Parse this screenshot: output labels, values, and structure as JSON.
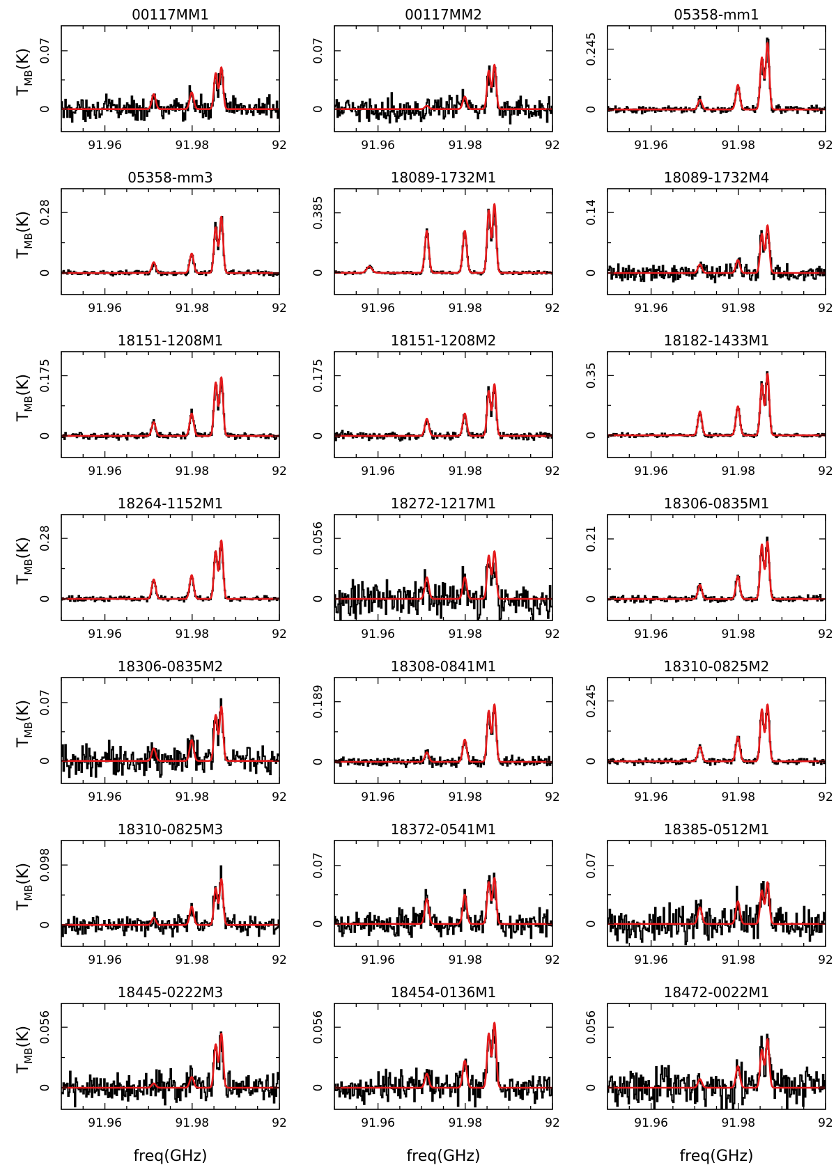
{
  "figure": {
    "xlabel": "freq(GHz)",
    "ylabel_main": "T",
    "ylabel_sub": "MB",
    "ylabel_unit": "(K)"
  },
  "colors": {
    "observed": "#000000",
    "fit": "#e41a1c"
  },
  "chart_data": [
    {
      "type": "line",
      "title": "00117MM1",
      "xlim": [
        91.95,
        92
      ],
      "xticks": [
        "91.96",
        "91.98",
        "92"
      ],
      "ylim": [
        -0.027,
        0.1
      ],
      "ytick_labels": [
        "0",
        "0.07"
      ],
      "ytick_values": [
        0,
        0.07
      ],
      "noise": 0.0085,
      "peaks": [
        0.018,
        0.02,
        0.043,
        0.05
      ],
      "satellite": 0,
      "series": [
        {
          "name": "observed"
        },
        {
          "name": "fit"
        }
      ]
    },
    {
      "type": "line",
      "title": "00117MM2",
      "xlim": [
        91.95,
        92
      ],
      "xticks": [
        "91.96",
        "91.98",
        "92"
      ],
      "ylim": [
        -0.027,
        0.1
      ],
      "ytick_labels": [
        "0",
        "0.07"
      ],
      "ytick_values": [
        0,
        0.07
      ],
      "noise": 0.009,
      "peaks": [
        0.004,
        0.015,
        0.046,
        0.053
      ],
      "satellite": 0,
      "series": [
        {
          "name": "observed"
        },
        {
          "name": "fit"
        }
      ]
    },
    {
      "type": "line",
      "title": "05358-mm1",
      "xlim": [
        91.95,
        92
      ],
      "xticks": [
        "91.96",
        "91.98",
        "92"
      ],
      "ylim": [
        -0.09,
        0.34
      ],
      "ytick_labels": [
        "0",
        "0.245"
      ],
      "ytick_values": [
        0,
        0.245
      ],
      "noise": 0.009,
      "peaks": [
        0.04,
        0.1,
        0.21,
        0.27
      ],
      "satellite": 0,
      "series": [
        {
          "name": "observed"
        },
        {
          "name": "fit"
        }
      ]
    },
    {
      "type": "line",
      "title": "05358-mm3",
      "xlim": [
        91.95,
        92
      ],
      "xticks": [
        "91.96",
        "91.98",
        "92"
      ],
      "ylim": [
        -0.1,
        0.39
      ],
      "ytick_labels": [
        "0",
        "0.28"
      ],
      "ytick_values": [
        0,
        0.28
      ],
      "noise": 0.008,
      "peaks": [
        0.05,
        0.09,
        0.21,
        0.26
      ],
      "satellite": 0,
      "series": [
        {
          "name": "observed"
        },
        {
          "name": "fit"
        }
      ]
    },
    {
      "type": "line",
      "title": "18089-1732M1",
      "xlim": [
        91.95,
        92
      ],
      "xticks": [
        "91.96",
        "91.98",
        "92"
      ],
      "ylim": [
        -0.14,
        0.54
      ],
      "ytick_labels": [
        "0",
        "0.385"
      ],
      "ytick_values": [
        0,
        0.385
      ],
      "noise": 0.006,
      "peaks": [
        0.27,
        0.27,
        0.4,
        0.44
      ],
      "satellite": 0.04,
      "series": [
        {
          "name": "observed"
        },
        {
          "name": "fit"
        }
      ]
    },
    {
      "type": "line",
      "title": "18089-1732M4",
      "xlim": [
        91.95,
        92
      ],
      "xticks": [
        "91.96",
        "91.98",
        "92"
      ],
      "ylim": [
        -0.05,
        0.195
      ],
      "ytick_labels": [
        "0",
        "0.14"
      ],
      "ytick_values": [
        0,
        0.14
      ],
      "noise": 0.012,
      "peaks": [
        0.02,
        0.03,
        0.09,
        0.11
      ],
      "satellite": 0,
      "series": [
        {
          "name": "observed"
        },
        {
          "name": "fit"
        }
      ]
    },
    {
      "type": "line",
      "title": "18151-1208M1",
      "xlim": [
        91.95,
        92
      ],
      "xticks": [
        "91.96",
        "91.98",
        "92"
      ],
      "ylim": [
        -0.063,
        0.245
      ],
      "ytick_labels": [
        "0",
        "0.175"
      ],
      "ytick_values": [
        0,
        0.175
      ],
      "noise": 0.006,
      "peaks": [
        0.04,
        0.065,
        0.155,
        0.17
      ],
      "satellite": 0,
      "series": [
        {
          "name": "observed"
        },
        {
          "name": "fit"
        }
      ]
    },
    {
      "type": "line",
      "title": "18151-1208M2",
      "xlim": [
        91.95,
        92
      ],
      "xticks": [
        "91.96",
        "91.98",
        "92"
      ],
      "ylim": [
        -0.063,
        0.245
      ],
      "ytick_labels": [
        "0",
        "0.175"
      ],
      "ytick_values": [
        0,
        0.175
      ],
      "noise": 0.007,
      "peaks": [
        0.05,
        0.065,
        0.13,
        0.15
      ],
      "satellite": 0,
      "series": [
        {
          "name": "observed"
        },
        {
          "name": "fit"
        }
      ]
    },
    {
      "type": "line",
      "title": "18182-1433M1",
      "xlim": [
        91.95,
        92
      ],
      "xticks": [
        "91.96",
        "91.98",
        "92"
      ],
      "ylim": [
        -0.13,
        0.49
      ],
      "ytick_labels": [
        "0",
        "0.35"
      ],
      "ytick_values": [
        0,
        0.35
      ],
      "noise": 0.007,
      "peaks": [
        0.14,
        0.17,
        0.3,
        0.36
      ],
      "satellite": 0,
      "series": [
        {
          "name": "observed"
        },
        {
          "name": "fit"
        }
      ]
    },
    {
      "type": "line",
      "title": "18264-1152M1",
      "xlim": [
        91.95,
        92
      ],
      "xticks": [
        "91.96",
        "91.98",
        "92"
      ],
      "ylim": [
        -0.1,
        0.39
      ],
      "ytick_labels": [
        "0",
        "0.28"
      ],
      "ytick_values": [
        0,
        0.28
      ],
      "noise": 0.008,
      "peaks": [
        0.09,
        0.11,
        0.22,
        0.27
      ],
      "satellite": 0,
      "series": [
        {
          "name": "observed"
        },
        {
          "name": "fit"
        }
      ]
    },
    {
      "type": "line",
      "title": "18272-1217M1",
      "xlim": [
        91.95,
        92
      ],
      "xticks": [
        "91.96",
        "91.98",
        "92"
      ],
      "ylim": [
        -0.02,
        0.078
      ],
      "ytick_labels": [
        "0",
        "0.056"
      ],
      "ytick_values": [
        0,
        0.056
      ],
      "noise": 0.011,
      "peaks": [
        0.02,
        0.02,
        0.04,
        0.044
      ],
      "satellite": 0,
      "series": [
        {
          "name": "observed"
        },
        {
          "name": "fit"
        }
      ]
    },
    {
      "type": "line",
      "title": "18306-0835M1",
      "xlim": [
        91.95,
        92
      ],
      "xticks": [
        "91.96",
        "91.98",
        "92"
      ],
      "ylim": [
        -0.075,
        0.295
      ],
      "ytick_labels": [
        "0",
        "0.21"
      ],
      "ytick_values": [
        0,
        0.21
      ],
      "noise": 0.007,
      "peaks": [
        0.05,
        0.08,
        0.19,
        0.2
      ],
      "satellite": 0,
      "series": [
        {
          "name": "observed"
        },
        {
          "name": "fit"
        }
      ]
    },
    {
      "type": "line",
      "title": "18306-0835M2",
      "xlim": [
        91.95,
        92
      ],
      "xticks": [
        "91.96",
        "91.98",
        "92"
      ],
      "ylim": [
        -0.027,
        0.1
      ],
      "ytick_labels": [
        "0",
        "0.07"
      ],
      "ytick_values": [
        0,
        0.07
      ],
      "noise": 0.011,
      "peaks": [
        0.015,
        0.025,
        0.055,
        0.065
      ],
      "satellite": 0,
      "series": [
        {
          "name": "observed"
        },
        {
          "name": "fit"
        }
      ]
    },
    {
      "type": "line",
      "title": "18308-0841M1",
      "xlim": [
        91.95,
        92
      ],
      "xticks": [
        "91.96",
        "91.98",
        "92"
      ],
      "ylim": [
        -0.068,
        0.265
      ],
      "ytick_labels": [
        "0",
        "0.189"
      ],
      "ytick_values": [
        0,
        0.189
      ],
      "noise": 0.009,
      "peaks": [
        0.03,
        0.07,
        0.16,
        0.18
      ],
      "satellite": 0,
      "series": [
        {
          "name": "observed"
        },
        {
          "name": "fit"
        }
      ]
    },
    {
      "type": "line",
      "title": "18310-0825M2",
      "xlim": [
        91.95,
        92
      ],
      "xticks": [
        "91.96",
        "91.98",
        "92"
      ],
      "ylim": [
        -0.09,
        0.34
      ],
      "ytick_labels": [
        "0",
        "0.245"
      ],
      "ytick_values": [
        0,
        0.245
      ],
      "noise": 0.008,
      "peaks": [
        0.06,
        0.1,
        0.21,
        0.23
      ],
      "satellite": 0,
      "series": [
        {
          "name": "observed"
        },
        {
          "name": "fit"
        }
      ]
    },
    {
      "type": "line",
      "title": "18310-0825M3",
      "xlim": [
        91.95,
        92
      ],
      "xticks": [
        "91.96",
        "91.98",
        "92"
      ],
      "ylim": [
        -0.035,
        0.138
      ],
      "ytick_labels": [
        "0",
        "0.098"
      ],
      "ytick_values": [
        0,
        0.098
      ],
      "noise": 0.01,
      "peaks": [
        0.012,
        0.03,
        0.06,
        0.075
      ],
      "satellite": 0,
      "series": [
        {
          "name": "observed"
        },
        {
          "name": "fit"
        }
      ]
    },
    {
      "type": "line",
      "title": "18372-0541M1",
      "xlim": [
        91.95,
        92
      ],
      "xticks": [
        "91.96",
        "91.98",
        "92"
      ],
      "ylim": [
        -0.027,
        0.1
      ],
      "ytick_labels": [
        "0",
        "0.07"
      ],
      "ytick_values": [
        0,
        0.07
      ],
      "noise": 0.01,
      "peaks": [
        0.03,
        0.035,
        0.05,
        0.055
      ],
      "satellite": 0,
      "series": [
        {
          "name": "observed"
        },
        {
          "name": "fit"
        }
      ]
    },
    {
      "type": "line",
      "title": "18385-0512M1",
      "xlim": [
        91.95,
        92
      ],
      "xticks": [
        "91.96",
        "91.98",
        "92"
      ],
      "ylim": [
        -0.027,
        0.1
      ],
      "ytick_labels": [
        "0",
        "0.07"
      ],
      "ytick_values": [
        0,
        0.07
      ],
      "noise": 0.013,
      "peaks": [
        0.02,
        0.027,
        0.04,
        0.05
      ],
      "satellite": 0,
      "series": [
        {
          "name": "observed"
        },
        {
          "name": "fit"
        }
      ]
    },
    {
      "type": "line",
      "title": "18445-0222M3",
      "xlim": [
        91.95,
        92
      ],
      "xticks": [
        "91.96",
        "91.98",
        "92"
      ],
      "ylim": [
        -0.02,
        0.078
      ],
      "ytick_labels": [
        "0",
        "0.056"
      ],
      "ytick_values": [
        0,
        0.056
      ],
      "noise": 0.008,
      "peaks": [
        0.004,
        0.01,
        0.04,
        0.05
      ],
      "satellite": 0,
      "series": [
        {
          "name": "observed"
        },
        {
          "name": "fit"
        }
      ]
    },
    {
      "type": "line",
      "title": "18454-0136M1",
      "xlim": [
        91.95,
        92
      ],
      "xticks": [
        "91.96",
        "91.98",
        "92"
      ],
      "ylim": [
        -0.02,
        0.078
      ],
      "ytick_labels": [
        "0",
        "0.056"
      ],
      "ytick_values": [
        0,
        0.056
      ],
      "noise": 0.009,
      "peaks": [
        0.013,
        0.025,
        0.05,
        0.06
      ],
      "satellite": 0,
      "series": [
        {
          "name": "observed"
        },
        {
          "name": "fit"
        }
      ]
    },
    {
      "type": "line",
      "title": "18472-0022M1",
      "xlim": [
        91.95,
        92
      ],
      "xticks": [
        "91.96",
        "91.98",
        "92"
      ],
      "ylim": [
        -0.02,
        0.078
      ],
      "ytick_labels": [
        "0",
        "0.056"
      ],
      "ytick_values": [
        0,
        0.056
      ],
      "noise": 0.011,
      "peaks": [
        0.008,
        0.02,
        0.035,
        0.045
      ],
      "satellite": 0,
      "series": [
        {
          "name": "observed"
        },
        {
          "name": "fit"
        }
      ]
    }
  ]
}
